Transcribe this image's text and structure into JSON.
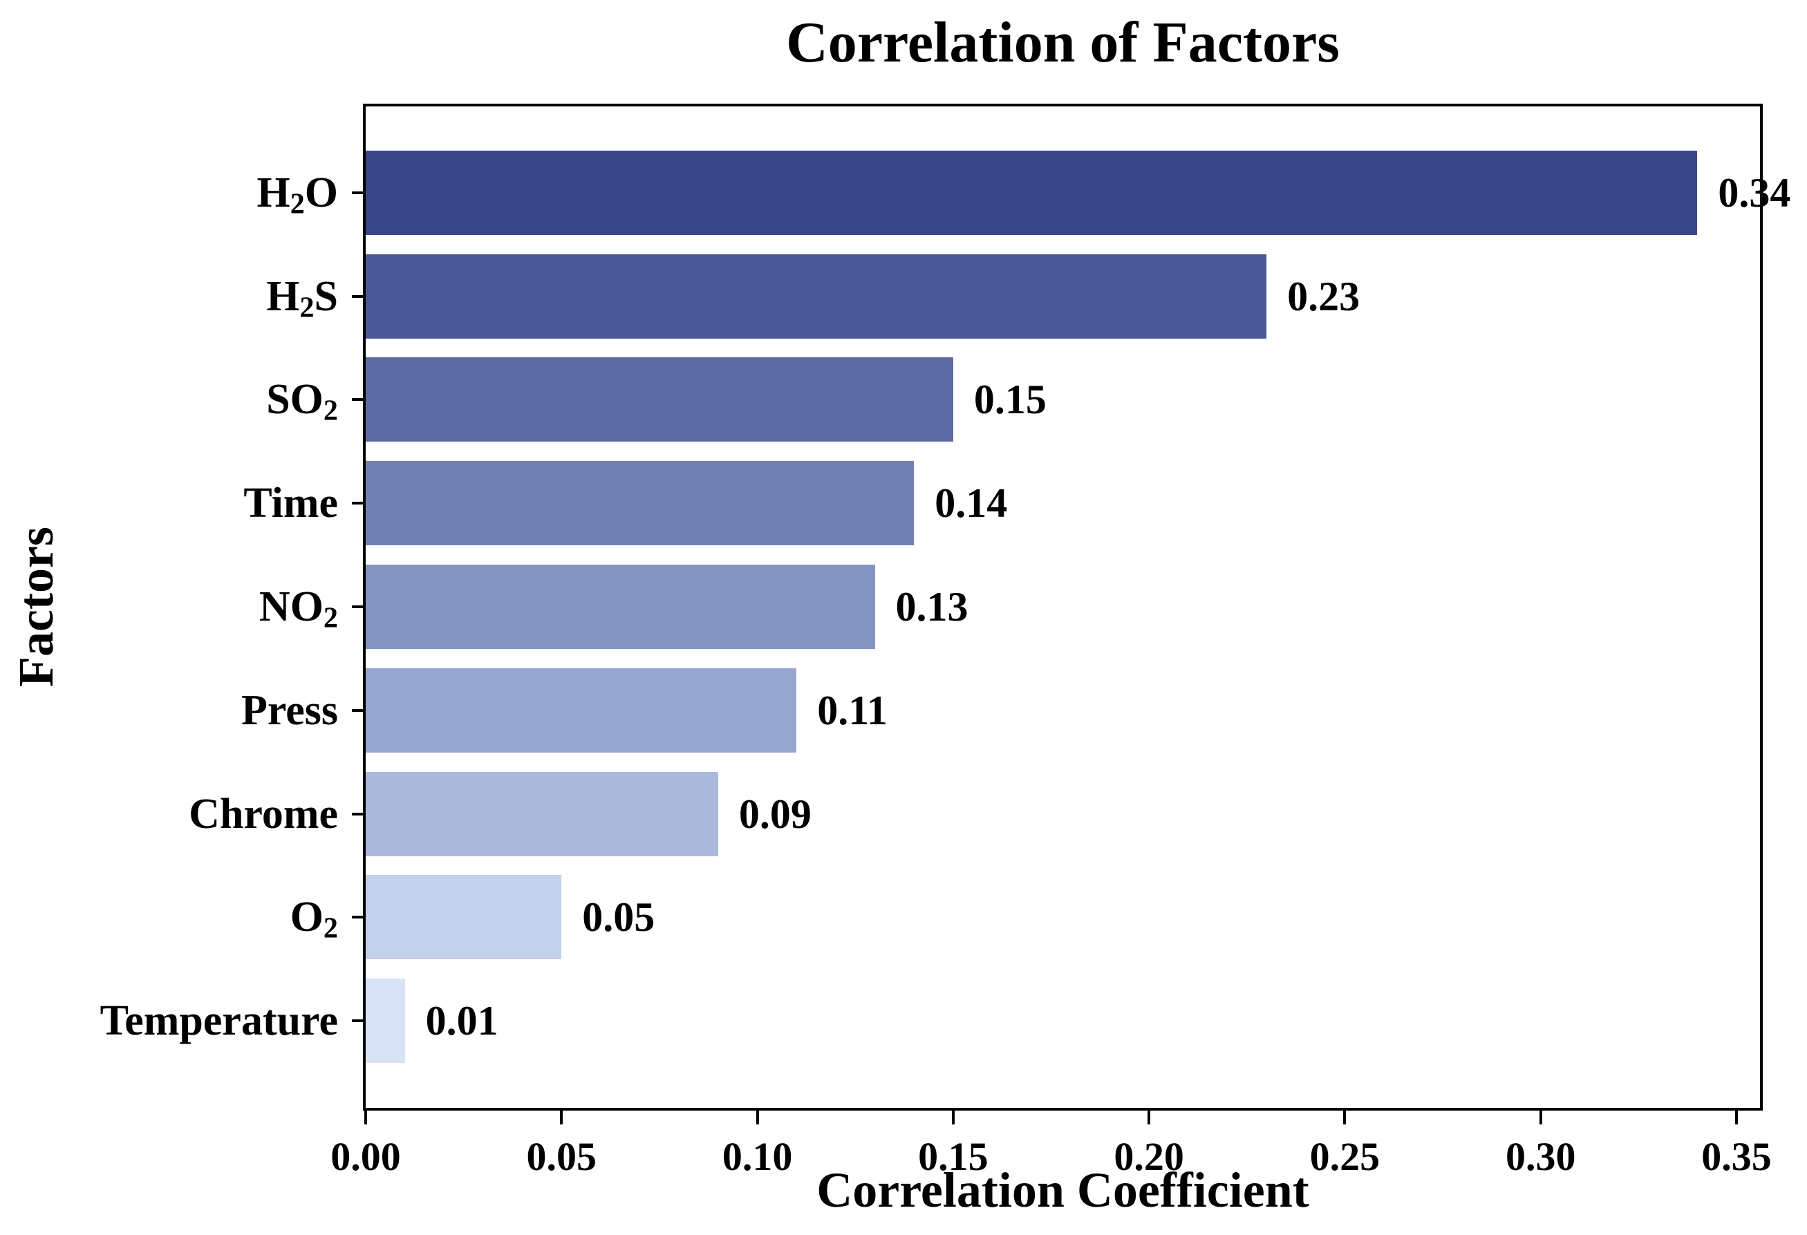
{
  "chart_data": {
    "type": "bar",
    "orientation": "horizontal",
    "title": "Correlation of Factors",
    "xlabel": "Correlation Coefficient",
    "ylabel": "Factors",
    "categories": [
      "H₂O",
      "H₂S",
      "SO₂",
      "Time",
      "NO₂",
      "Press",
      "Chrome",
      "O₂",
      "Temperature"
    ],
    "values": [
      0.34,
      0.23,
      0.15,
      0.14,
      0.13,
      0.11,
      0.09,
      0.05,
      0.01
    ],
    "value_labels": [
      "0.34",
      "0.23",
      "0.15",
      "0.14",
      "0.13",
      "0.11",
      "0.09",
      "0.05",
      "0.01"
    ],
    "bar_colors": [
      "#3A4488",
      "#4C5795",
      "#5E6AA5",
      "#7280B2",
      "#8593C0",
      "#97A6CE",
      "#ABBADC",
      "#C3D1EC",
      "#D8E3F6"
    ],
    "x_ticks": [
      "0.00",
      "0.05",
      "0.10",
      "0.15",
      "0.20",
      "0.25",
      "0.30",
      "0.35"
    ],
    "x_tick_values": [
      0.0,
      0.05,
      0.1,
      0.15,
      0.2,
      0.25,
      0.3,
      0.35
    ],
    "xlim": [
      0,
      0.356
    ],
    "grid": false,
    "legend": null,
    "colors": {
      "axis": "#000000",
      "text": "#000000",
      "background": "#ffffff"
    }
  }
}
